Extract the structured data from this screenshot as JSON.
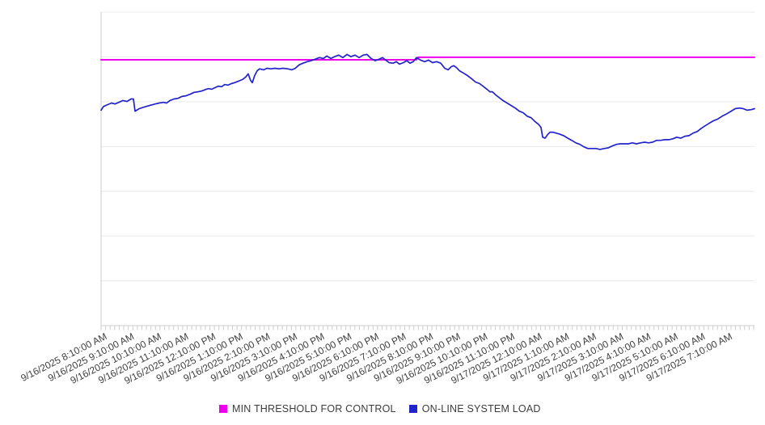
{
  "chart_data": {
    "type": "line",
    "title": "",
    "background_color": "#ffffff",
    "gridline_color": "#e9e9e9",
    "axis_color": "#cdcdcd",
    "tick_label_color": "#3d3d3d",
    "x_axis": {
      "tick_labels": [
        "9/16/2025 8:10:00 AM",
        "9/16/2025 9:10:00 AM",
        "9/16/2025 10:10:00 AM",
        "9/16/2025 11:10:00 AM",
        "9/16/2025 12:10:00 PM",
        "9/16/2025 1:10:00 PM",
        "9/16/2025 2:10:00 PM",
        "9/16/2025 3:10:00 PM",
        "9/16/2025 4:10:00 PM",
        "9/16/2025 5:10:00 PM",
        "9/16/2025 6:10:00 PM",
        "9/16/2025 7:10:00 PM",
        "9/16/2025 8:10:00 PM",
        "9/16/2025 9:10:00 PM",
        "9/16/2025 10:10:00 PM",
        "9/16/2025 11:10:00 PM",
        "9/17/2025 12:10:00 AM",
        "9/17/2025 1:10:00 AM",
        "9/17/2025 2:10:00 AM",
        "9/17/2025 3:10:00 AM",
        "9/17/2025 4:10:00 AM",
        "9/17/2025 5:10:00 AM",
        "9/17/2025 6:10:00 AM",
        "9/17/2025 7:10:00 AM"
      ],
      "label_every_hours": 1,
      "minor_tick_interval_minutes": 10,
      "label_rotation_deg": -27,
      "range_hours": [
        0,
        24.03
      ]
    },
    "y_axis": {
      "tick_labels_visible": false,
      "range_normalized": [
        0,
        100
      ],
      "gridline_count": 8
    },
    "legend": [
      {
        "label": "MIN THRESHOLD FOR CONTROL",
        "color": "#ee00ee"
      },
      {
        "label": "ON-LINE SYSTEM LOAD",
        "color": "#2323cd"
      }
    ],
    "series": [
      {
        "name": "MIN THRESHOLD FOR CONTROL",
        "color": "#ee00ee",
        "stroke_width": 2,
        "points_h_v": [
          [
            0,
            84.8
          ],
          [
            11.6,
            84.8
          ],
          [
            11.66,
            85.6
          ],
          [
            24.03,
            85.6
          ]
        ]
      },
      {
        "name": "ON-LINE SYSTEM LOAD",
        "color": "#2323cd",
        "stroke_width": 1.7,
        "points_h_v": [
          [
            0,
            68.7
          ],
          [
            0.09,
            69.9
          ],
          [
            0.24,
            70.5
          ],
          [
            0.39,
            71
          ],
          [
            0.51,
            70.7
          ],
          [
            0.65,
            71.2
          ],
          [
            0.8,
            71.8
          ],
          [
            0.95,
            71.5
          ],
          [
            1.1,
            72.3
          ],
          [
            1.19,
            72.3
          ],
          [
            1.25,
            68.4
          ],
          [
            1.4,
            69.2
          ],
          [
            1.58,
            69.7
          ],
          [
            1.78,
            70.2
          ],
          [
            1.99,
            70.7
          ],
          [
            2.14,
            71
          ],
          [
            2.29,
            71.2
          ],
          [
            2.41,
            71
          ],
          [
            2.53,
            71.8
          ],
          [
            2.68,
            72.3
          ],
          [
            2.83,
            72.5
          ],
          [
            2.97,
            73.1
          ],
          [
            3.12,
            73.3
          ],
          [
            3.27,
            73.8
          ],
          [
            3.42,
            74.4
          ],
          [
            3.57,
            74.6
          ],
          [
            3.72,
            74.9
          ],
          [
            3.87,
            75.4
          ],
          [
            3.96,
            75.6
          ],
          [
            4.07,
            75.4
          ],
          [
            4.19,
            75.9
          ],
          [
            4.31,
            76.4
          ],
          [
            4.43,
            76.2
          ],
          [
            4.55,
            76.9
          ],
          [
            4.67,
            76.7
          ],
          [
            4.79,
            77.2
          ],
          [
            4.91,
            77.5
          ],
          [
            5.06,
            78
          ],
          [
            5.2,
            78.5
          ],
          [
            5.32,
            79.3
          ],
          [
            5.41,
            80.3
          ],
          [
            5.5,
            78.2
          ],
          [
            5.56,
            77.5
          ],
          [
            5.65,
            79.8
          ],
          [
            5.74,
            81.3
          ],
          [
            5.83,
            81.9
          ],
          [
            5.98,
            81.6
          ],
          [
            6.1,
            82.1
          ],
          [
            6.24,
            81.9
          ],
          [
            6.39,
            82.1
          ],
          [
            6.54,
            81.9
          ],
          [
            6.69,
            82.1
          ],
          [
            6.87,
            81.9
          ],
          [
            7.02,
            81.6
          ],
          [
            7.14,
            82.1
          ],
          [
            7.29,
            83.2
          ],
          [
            7.43,
            83.7
          ],
          [
            7.58,
            84.2
          ],
          [
            7.73,
            84.5
          ],
          [
            7.88,
            85
          ],
          [
            8.03,
            85.5
          ],
          [
            8.18,
            85.2
          ],
          [
            8.3,
            86
          ],
          [
            8.45,
            85.2
          ],
          [
            8.59,
            85.8
          ],
          [
            8.74,
            86.3
          ],
          [
            8.89,
            85.5
          ],
          [
            9.04,
            86.5
          ],
          [
            9.19,
            85.8
          ],
          [
            9.34,
            86.3
          ],
          [
            9.49,
            85.5
          ],
          [
            9.64,
            86.3
          ],
          [
            9.78,
            86.5
          ],
          [
            9.93,
            85.2
          ],
          [
            10.08,
            84.5
          ],
          [
            10.23,
            85
          ],
          [
            10.35,
            85.5
          ],
          [
            10.47,
            84.7
          ],
          [
            10.59,
            83.9
          ],
          [
            10.74,
            83.7
          ],
          [
            10.86,
            84.2
          ],
          [
            10.97,
            83.4
          ],
          [
            11.12,
            83.9
          ],
          [
            11.24,
            84.5
          ],
          [
            11.36,
            83.7
          ],
          [
            11.48,
            84.2
          ],
          [
            11.6,
            85.5
          ],
          [
            11.75,
            84.7
          ],
          [
            11.9,
            84.2
          ],
          [
            12.04,
            84.7
          ],
          [
            12.19,
            83.9
          ],
          [
            12.34,
            84.2
          ],
          [
            12.49,
            83.7
          ],
          [
            12.64,
            82.1
          ],
          [
            12.76,
            81.6
          ],
          [
            12.88,
            82.6
          ],
          [
            12.97,
            82.9
          ],
          [
            13.06,
            82.4
          ],
          [
            13.18,
            81.3
          ],
          [
            13.32,
            80.6
          ],
          [
            13.47,
            79.8
          ],
          [
            13.62,
            78.8
          ],
          [
            13.77,
            77.7
          ],
          [
            13.92,
            77.2
          ],
          [
            14.07,
            76.2
          ],
          [
            14.19,
            75.4
          ],
          [
            14.3,
            74.6
          ],
          [
            14.39,
            74.6
          ],
          [
            14.51,
            73.6
          ],
          [
            14.63,
            72.8
          ],
          [
            14.78,
            71.8
          ],
          [
            14.93,
            71
          ],
          [
            15.08,
            70.2
          ],
          [
            15.23,
            69.4
          ],
          [
            15.38,
            68.4
          ],
          [
            15.52,
            67.9
          ],
          [
            15.67,
            66.8
          ],
          [
            15.82,
            66.3
          ],
          [
            15.97,
            65
          ],
          [
            16.09,
            64.2
          ],
          [
            16.18,
            63.2
          ],
          [
            16.24,
            60.1
          ],
          [
            16.33,
            59.8
          ],
          [
            16.42,
            60.9
          ],
          [
            16.51,
            61.7
          ],
          [
            16.62,
            61.7
          ],
          [
            16.74,
            61.4
          ],
          [
            16.86,
            61.1
          ],
          [
            17.01,
            60.6
          ],
          [
            17.16,
            59.8
          ],
          [
            17.31,
            59.1
          ],
          [
            17.46,
            58.3
          ],
          [
            17.61,
            57.8
          ],
          [
            17.76,
            57
          ],
          [
            17.9,
            56.5
          ],
          [
            18.05,
            56.5
          ],
          [
            18.2,
            56.5
          ],
          [
            18.35,
            56.2
          ],
          [
            18.5,
            56.5
          ],
          [
            18.65,
            56.7
          ],
          [
            18.8,
            57.3
          ],
          [
            18.95,
            57.8
          ],
          [
            19.09,
            58
          ],
          [
            19.24,
            58
          ],
          [
            19.39,
            58
          ],
          [
            19.54,
            58.3
          ],
          [
            19.69,
            58
          ],
          [
            19.84,
            58.3
          ],
          [
            19.99,
            58.5
          ],
          [
            20.13,
            58.3
          ],
          [
            20.28,
            58.5
          ],
          [
            20.43,
            59.1
          ],
          [
            20.58,
            59.1
          ],
          [
            20.73,
            59.3
          ],
          [
            20.88,
            59.3
          ],
          [
            21.03,
            59.6
          ],
          [
            21.17,
            60.1
          ],
          [
            21.32,
            59.8
          ],
          [
            21.47,
            60.4
          ],
          [
            21.62,
            60.6
          ],
          [
            21.77,
            61.4
          ],
          [
            21.92,
            61.9
          ],
          [
            22.07,
            62.9
          ],
          [
            22.21,
            63.7
          ],
          [
            22.36,
            64.5
          ],
          [
            22.51,
            65.3
          ],
          [
            22.66,
            65.8
          ],
          [
            22.84,
            66.8
          ],
          [
            23.02,
            67.6
          ],
          [
            23.17,
            68.4
          ],
          [
            23.32,
            69.2
          ],
          [
            23.47,
            69.4
          ],
          [
            23.62,
            69.2
          ],
          [
            23.76,
            68.7
          ],
          [
            23.91,
            68.9
          ],
          [
            24.03,
            69.2
          ]
        ]
      }
    ]
  }
}
